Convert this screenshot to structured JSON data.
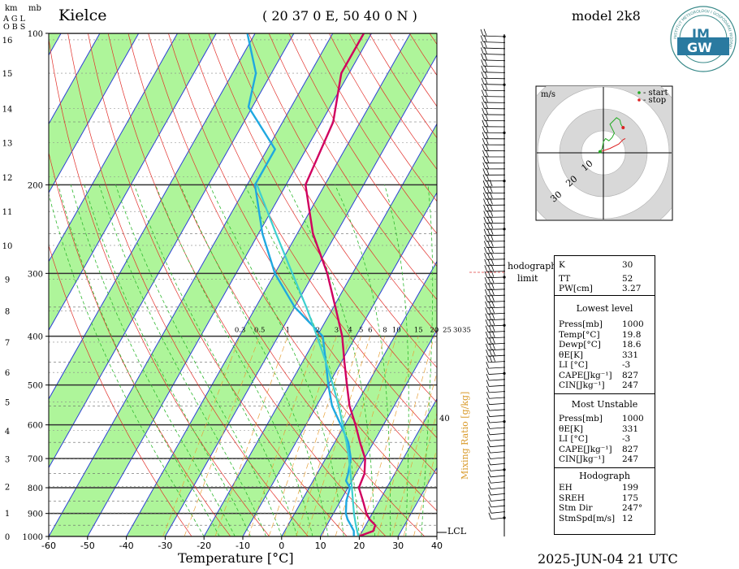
{
  "header": {
    "station": "Kielce",
    "coords": "( 20 37 0 E, 50 40 0 N )",
    "model": "model 2k8",
    "datetime": "2025-JUN-04   21 UTC",
    "axis_units_km": "km",
    "axis_units_mb": "mb",
    "agl": "A G L",
    "obs": "O B S",
    "xlabel": "Temperature [°C]",
    "mixing_ratio_label": "Mixing Ratio [g/kg]",
    "lcl_label": "LCL",
    "hodograph_limit": [
      "hodograph",
      "limit"
    ],
    "mixing_ratio_ticks": [
      "0.3",
      "0.5",
      "1",
      "2",
      "3",
      "4",
      "5",
      "6",
      "8",
      "10",
      "15",
      "20",
      "25",
      "30",
      "35"
    ],
    "theta_label": "40"
  },
  "logo": {
    "top_text": "IM",
    "bottom_text": "GW",
    "ring_text": "INSTYTUT METEOROLOGII I GOSPODARKI WODNEJ"
  },
  "chart_data": [
    {
      "type": "line",
      "name": "skew-t",
      "xlabel": "Temperature [°C]",
      "ylabel": "mb",
      "xlim": [
        -60,
        40
      ],
      "x_ticks": [
        -60,
        -50,
        -40,
        -30,
        -20,
        -10,
        0,
        10,
        20,
        30,
        40
      ],
      "pressure_ticks": [
        100,
        200,
        300,
        400,
        500,
        600,
        700,
        800,
        900,
        1000
      ],
      "km_ticks": [
        0,
        1,
        2,
        3,
        4,
        5,
        6,
        7,
        8,
        9,
        10,
        11,
        12,
        13,
        14,
        15,
        16
      ],
      "series": [
        {
          "color": "#d0005f",
          "points": [
            [
              1000,
              19.8
            ],
            [
              975,
              22.8
            ],
            [
              950,
              22.5
            ],
            [
              925,
              20.2
            ],
            [
              900,
              18.5
            ],
            [
              850,
              15.8
            ],
            [
              800,
              12.8
            ],
            [
              750,
              12.2
            ],
            [
              700,
              10.2
            ],
            [
              650,
              6.5
            ],
            [
              600,
              2.8
            ],
            [
              550,
              -1.5
            ],
            [
              500,
              -5.2
            ],
            [
              450,
              -9.2
            ],
            [
              400,
              -13.5
            ],
            [
              350,
              -19.5
            ],
            [
              300,
              -26.5
            ],
            [
              250,
              -36
            ],
            [
              200,
              -45
            ],
            [
              150,
              -47
            ],
            [
              120,
              -52
            ],
            [
              100,
              -52
            ]
          ]
        },
        {
          "color": "#1fa8e0",
          "points": [
            [
              1000,
              18.6
            ],
            [
              975,
              17.8
            ],
            [
              950,
              16.2
            ],
            [
              925,
              14.5
            ],
            [
              900,
              13.2
            ],
            [
              850,
              11.5
            ],
            [
              800,
              10.5
            ],
            [
              775,
              8.5
            ],
            [
              750,
              8.0
            ],
            [
              700,
              6.5
            ],
            [
              650,
              3.5
            ],
            [
              600,
              -1.0
            ],
            [
              550,
              -6.0
            ],
            [
              500,
              -10.0
            ],
            [
              450,
              -14.0
            ],
            [
              400,
              -18.5
            ],
            [
              350,
              -30
            ],
            [
              300,
              -40
            ],
            [
              250,
              -49
            ],
            [
              200,
              -58
            ],
            [
              170,
              -58
            ],
            [
              140,
              -71
            ],
            [
              120,
              -74
            ],
            [
              100,
              -82
            ]
          ]
        },
        {
          "color": "#3ecfcf",
          "points": [
            [
              1000,
              19.8
            ],
            [
              950,
              17.5
            ],
            [
              900,
              15.3
            ],
            [
              850,
              13.2
            ],
            [
              800,
              11.0
            ],
            [
              750,
              8.6
            ],
            [
              700,
              6.0
            ],
            [
              650,
              3.0
            ],
            [
              600,
              -0.5
            ],
            [
              550,
              -4.3
            ],
            [
              500,
              -8.8
            ],
            [
              450,
              -14.0
            ],
            [
              400,
              -20.0
            ],
            [
              350,
              -27.0
            ],
            [
              300,
              -35.5
            ],
            [
              250,
              -45.5
            ],
            [
              200,
              -57.5
            ]
          ]
        }
      ]
    },
    {
      "type": "line",
      "name": "hodograph",
      "unit": "m/s",
      "ring_labels": [
        "10",
        "20",
        "30"
      ],
      "legend": [
        {
          "label": "- start",
          "color": "#22aa22"
        },
        {
          "label": "- stop",
          "color": "#dd2222"
        }
      ],
      "series": [
        {
          "color": "#22aa22",
          "points": [
            [
              -1.5,
              0.5
            ],
            [
              -0.5,
              2
            ],
            [
              0,
              5
            ],
            [
              1,
              6.5
            ],
            [
              2.5,
              5.5
            ],
            [
              4,
              7
            ],
            [
              5,
              9
            ],
            [
              4,
              11
            ],
            [
              3,
              13
            ],
            [
              5,
              15
            ],
            [
              6,
              16
            ],
            [
              7.5,
              15
            ],
            [
              8,
              13
            ],
            [
              9,
              11.5
            ]
          ]
        },
        {
          "color": "#dd2222",
          "points": [
            [
              -1.5,
              0.5
            ],
            [
              3,
              2
            ],
            [
              7,
              4
            ],
            [
              9,
              6
            ],
            [
              10,
              6.5
            ]
          ]
        }
      ]
    }
  ],
  "indices": {
    "K": "30",
    "TT": "52",
    "PW": "3.27",
    "labels": {
      "K": "K",
      "TT": "TT",
      "PW": "PW[cm]"
    }
  },
  "lowest_level": {
    "title": "Lowest level",
    "rows": [
      {
        "k": "Press[mb]",
        "v": "1000"
      },
      {
        "k": "Temp[°C]",
        "v": "19.8"
      },
      {
        "k": "Dewp[°C]",
        "v": "18.6"
      },
      {
        "k": "θE[K]",
        "v": "331"
      },
      {
        "k": "LI [°C]",
        "v": "-3"
      },
      {
        "k": "CAPE[Jkg⁻¹]",
        "v": "827"
      },
      {
        "k": "CIN[Jkg⁻¹]",
        "v": "247"
      }
    ]
  },
  "most_unstable": {
    "title": "Most Unstable",
    "rows": [
      {
        "k": "Press[mb]",
        "v": "1000"
      },
      {
        "k": "θE[K]",
        "v": "331"
      },
      {
        "k": "LI [°C]",
        "v": "-3"
      },
      {
        "k": "CAPE[Jkg⁻¹]",
        "v": "827"
      },
      {
        "k": "CIN[Jkg⁻¹]",
        "v": "247"
      }
    ]
  },
  "hodograph_stats": {
    "title": "Hodograph",
    "rows": [
      {
        "k": "EH",
        "v": "199"
      },
      {
        "k": "SREH",
        "v": "175"
      },
      {
        "k": "Stm Dir",
        "v": "247°"
      },
      {
        "k": "StmSpd[m/s]",
        "v": "12"
      }
    ]
  },
  "colors": {
    "dry_adiabat_band": "#aef59a",
    "isotherm": "#2b3fd6",
    "dry_adiabat": "#e2302a",
    "moist_adiabat": "#2fb82f",
    "mixing_ratio": "#e8a23a"
  }
}
